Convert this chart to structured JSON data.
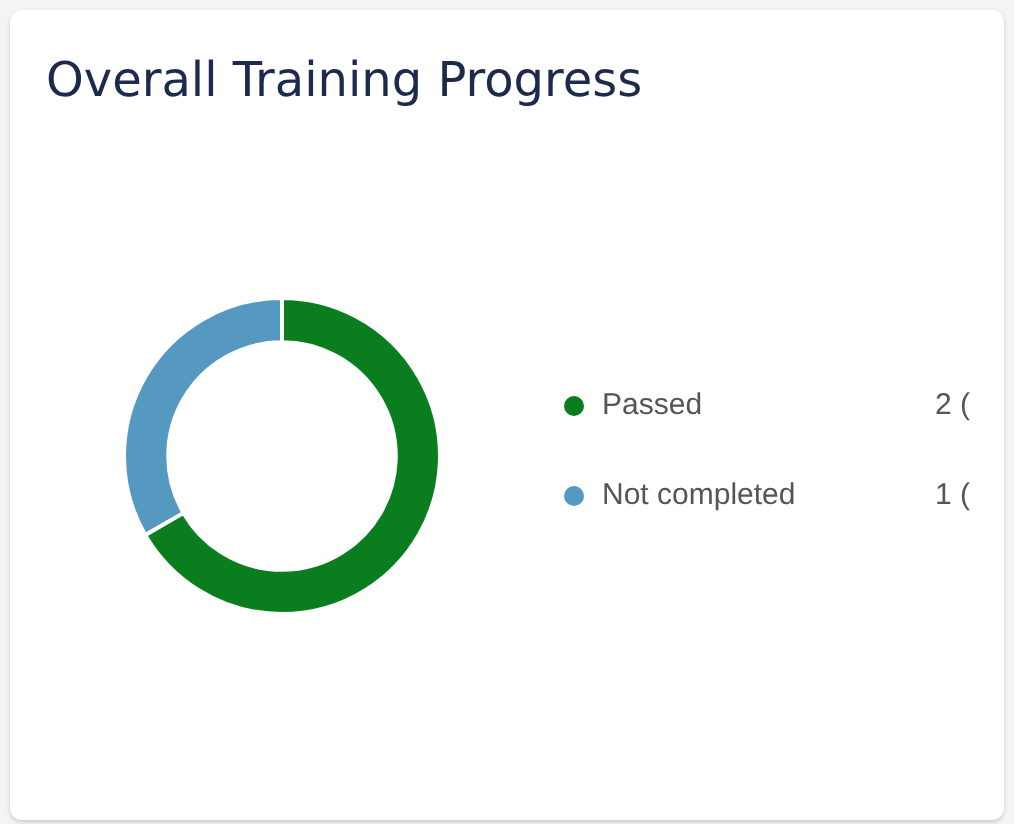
{
  "chart_data": {
    "type": "donut",
    "title": "Overall Training Progress",
    "categories": [
      "Passed",
      "Not completed"
    ],
    "values": [
      2,
      1
    ],
    "colors": [
      "#0a7e1e",
      "#5599c0"
    ],
    "legend": "right",
    "value_labels": [
      "2 (",
      "1 ("
    ]
  }
}
